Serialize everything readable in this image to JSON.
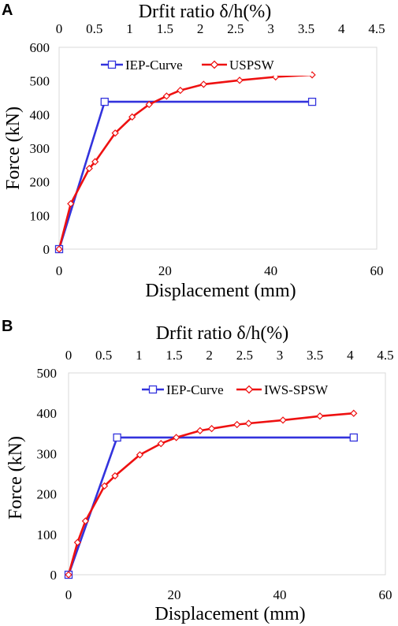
{
  "figure": {
    "background": "#ffffff"
  },
  "chart_data": [
    {
      "panel": "A",
      "type": "line",
      "xlabel": "Displacement (mm)",
      "ylabel": "Force (kN)",
      "x2label": "Drfit ratio δ/h(%)",
      "xlim": [
        0,
        60
      ],
      "ylim": [
        0,
        600
      ],
      "x2lim": [
        0,
        4.5
      ],
      "xticks": [
        0,
        20,
        40,
        60
      ],
      "yticks": [
        0,
        100,
        200,
        300,
        400,
        500,
        600
      ],
      "x2ticks": [
        0,
        0.5,
        1,
        1.5,
        2,
        2.5,
        3,
        3.5,
        4,
        4.5
      ],
      "grid": false,
      "legend_position": "top",
      "series": [
        {
          "name": "IEP-Curve",
          "color": "#3333dd",
          "marker": "square",
          "x": [
            0,
            8.6,
            47.8
          ],
          "y": [
            0,
            438,
            438
          ]
        },
        {
          "name": "USPSW",
          "color": "#ee1111",
          "marker": "diamond",
          "x": [
            0,
            2.2,
            5.7,
            6.8,
            10.6,
            13.8,
            17.0,
            20.3,
            22.9,
            27.3,
            34.1,
            40.9,
            47.8
          ],
          "y": [
            0,
            135,
            240,
            260,
            345,
            393,
            430,
            455,
            472,
            490,
            502,
            512,
            518
          ]
        }
      ]
    },
    {
      "panel": "B",
      "type": "line",
      "xlabel": "Displacement (mm)",
      "ylabel": "Force (kN)",
      "x2label": "Drfit ratio δ/h(%)",
      "xlim": [
        0,
        60
      ],
      "ylim": [
        0,
        500
      ],
      "x2lim": [
        0,
        4.5
      ],
      "xticks": [
        0,
        20,
        40,
        60
      ],
      "yticks": [
        0,
        100,
        200,
        300,
        400,
        500
      ],
      "x2ticks": [
        0,
        0.5,
        1,
        1.5,
        2,
        2.5,
        3,
        3.5,
        4,
        4.5
      ],
      "grid": false,
      "legend_position": "top",
      "series": [
        {
          "name": "IEP-Curve",
          "color": "#3333dd",
          "marker": "square",
          "x": [
            0,
            9.2,
            54.0
          ],
          "y": [
            0,
            340,
            340
          ]
        },
        {
          "name": "IWS-SPSW",
          "color": "#ee1111",
          "marker": "diamond",
          "x": [
            0,
            1.7,
            3.2,
            6.8,
            8.8,
            13.5,
            17.5,
            20.4,
            24.9,
            27.1,
            31.9,
            34.1,
            40.6,
            47.6,
            54.0
          ],
          "y": [
            0,
            80,
            133,
            220,
            245,
            297,
            325,
            340,
            357,
            362,
            372,
            375,
            383,
            393,
            400
          ]
        }
      ]
    }
  ]
}
